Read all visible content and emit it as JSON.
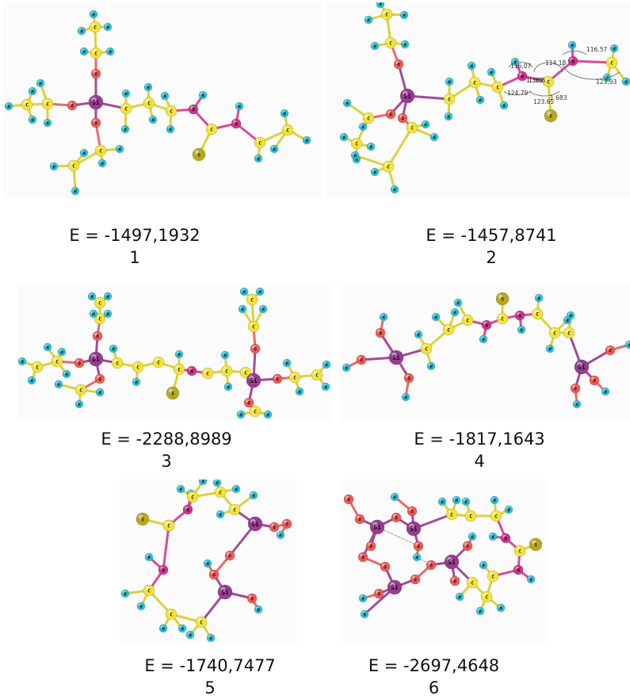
{
  "atom_colors": {
    "C": "#f2e33a",
    "H": "#2cc3dc",
    "O": "#ef5a55",
    "Si": "#9a3b92",
    "N": "#d2338c",
    "S": "#b8a81a",
    "bond_C": "#ddd23a",
    "bond_O": "#ea6c68",
    "bond_Si": "#a24a9a",
    "bond_N": "#d84b9a"
  },
  "atom_labels": {
    "C": "C",
    "H": "H",
    "O": "O",
    "Si": "Si",
    "N": "N",
    "S": "S"
  },
  "structures": [
    {
      "energy": "E = -1497,1932",
      "number": "1"
    },
    {
      "energy": "E = -1457,8741",
      "number": "2",
      "geometry": [
        "116.07",
        "114.18",
        "116.57",
        "1.363",
        "1.365",
        "124.79",
        "123.65",
        "1.683",
        "123.93"
      ]
    },
    {
      "energy": "E = -2288,8989",
      "number": "3"
    },
    {
      "energy": "E = -1817,1643",
      "number": "4"
    },
    {
      "energy": "E = -1740,7477",
      "number": "5"
    },
    {
      "energy": "E = -2697,4648",
      "number": "6"
    }
  ]
}
